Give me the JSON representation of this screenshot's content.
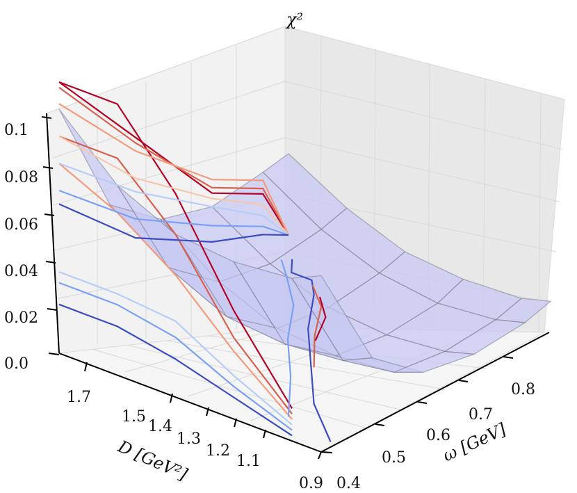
{
  "chart_data": {
    "type": "surface3d",
    "zlabel": "χ²",
    "xlabel": "ω [GeV]",
    "ylabel": "D [GeV²]",
    "x_ticks": [
      "0.4",
      "0.5",
      "0.6",
      "0.7",
      "0.8"
    ],
    "y_ticks": [
      "0.9",
      "1.1",
      "1.2",
      "1.3",
      "1.4",
      "1.5",
      "1.7"
    ],
    "z_ticks": [
      "0.0",
      "0.02",
      "0.04",
      "0.06",
      "0.08",
      "0.1"
    ],
    "xlim": [
      0.4,
      0.85
    ],
    "ylim": [
      0.9,
      1.8
    ],
    "zlim": [
      0,
      0.1
    ],
    "grid": true,
    "surface_color": "#c6c8f3",
    "surface": {
      "x": [
        0.4,
        0.5,
        0.6,
        0.7,
        0.8,
        0.85
      ],
      "y": [
        0.9,
        1.1,
        1.3,
        1.5,
        1.7,
        1.8
      ],
      "z": [
        [
          0.09,
          0.045,
          0.03,
          0.025,
          0.028,
          0.03
        ],
        [
          0.07,
          0.03,
          0.015,
          0.012,
          0.015,
          0.018
        ],
        [
          0.06,
          0.02,
          0.006,
          0.004,
          0.007,
          0.01
        ],
        [
          0.058,
          0.018,
          0.004,
          0.002,
          0.004,
          0.008
        ],
        [
          0.06,
          0.02,
          0.006,
          0.004,
          0.006,
          0.009
        ],
        [
          0.065,
          0.025,
          0.01,
          0.007,
          0.009,
          0.012
        ]
      ]
    },
    "projections_x_wall": [
      {
        "color": "#b40426",
        "points": [
          [
            1.7,
            0.012
          ],
          [
            1.5,
            0.04
          ],
          [
            1.3,
            0.075
          ],
          [
            1.1,
            0.1
          ],
          [
            0.9,
            0.1
          ]
        ]
      },
      {
        "color": "#d8604f",
        "points": [
          [
            1.7,
            0.01
          ],
          [
            1.5,
            0.03
          ],
          [
            1.3,
            0.06
          ],
          [
            1.1,
            0.08
          ],
          [
            0.9,
            0.08
          ]
        ]
      },
      {
        "color": "#f39b7c",
        "points": [
          [
            1.7,
            0.008
          ],
          [
            1.5,
            0.025
          ],
          [
            1.3,
            0.045
          ],
          [
            1.1,
            0.06
          ],
          [
            0.9,
            0.07
          ]
        ]
      },
      {
        "color": "#b5cdf9",
        "points": [
          [
            1.7,
            0.006
          ],
          [
            1.5,
            0.016
          ],
          [
            1.3,
            0.028
          ],
          [
            1.1,
            0.03
          ],
          [
            0.9,
            0.03
          ]
        ]
      },
      {
        "color": "#7aa0f5",
        "points": [
          [
            1.7,
            0.004
          ],
          [
            1.5,
            0.012
          ],
          [
            1.3,
            0.022
          ],
          [
            1.1,
            0.026
          ],
          [
            0.9,
            0.026
          ]
        ]
      },
      {
        "color": "#3b4cc0",
        "points": [
          [
            1.7,
            0.002
          ],
          [
            1.5,
            0.008
          ],
          [
            1.3,
            0.014
          ],
          [
            1.1,
            0.018
          ],
          [
            0.9,
            0.018
          ]
        ]
      }
    ],
    "projections_y_wall": [
      {
        "color": "#b40426",
        "points": [
          [
            0.4,
            0.1
          ],
          [
            0.55,
            0.065
          ],
          [
            0.7,
            0.03
          ],
          [
            0.8,
            0.02
          ],
          [
            0.85,
            0.0
          ]
        ]
      },
      {
        "color": "#d8604f",
        "points": [
          [
            0.4,
            0.098
          ],
          [
            0.55,
            0.063
          ],
          [
            0.7,
            0.032
          ],
          [
            0.8,
            0.022
          ],
          [
            0.85,
            0.0
          ]
        ]
      },
      {
        "color": "#f39b7c",
        "points": [
          [
            0.4,
            0.092
          ],
          [
            0.55,
            0.06
          ],
          [
            0.7,
            0.035
          ],
          [
            0.8,
            0.025
          ],
          [
            0.85,
            0.0
          ]
        ]
      },
      {
        "color": "#f4c7b0",
        "points": [
          [
            0.4,
            0.08
          ],
          [
            0.55,
            0.05
          ],
          [
            0.7,
            0.028
          ],
          [
            0.8,
            0.016
          ],
          [
            0.85,
            0.0
          ]
        ]
      },
      {
        "color": "#b5cdf9",
        "points": [
          [
            0.4,
            0.07
          ],
          [
            0.55,
            0.045
          ],
          [
            0.7,
            0.025
          ],
          [
            0.8,
            0.012
          ],
          [
            0.85,
            0.0
          ]
        ]
      },
      {
        "color": "#7aa0f5",
        "points": [
          [
            0.4,
            0.06
          ],
          [
            0.55,
            0.035
          ],
          [
            0.7,
            0.018
          ],
          [
            0.8,
            0.008
          ],
          [
            0.85,
            0.0
          ]
        ]
      },
      {
        "color": "#3b4cc0",
        "points": [
          [
            0.4,
            0.055
          ],
          [
            0.55,
            0.028
          ],
          [
            0.7,
            0.012
          ],
          [
            0.8,
            0.005
          ],
          [
            0.85,
            0.0
          ]
        ]
      }
    ],
    "contours_floor": [
      {
        "color": "#3b4cc0",
        "points": [
          [
            0.43,
            1.78
          ],
          [
            0.5,
            1.6
          ],
          [
            0.58,
            1.45
          ],
          [
            0.66,
            1.3
          ],
          [
            0.74,
            1.18
          ],
          [
            0.77,
            1.12
          ],
          [
            0.77,
            1.05
          ],
          [
            0.8,
            1.0
          ]
        ]
      },
      {
        "color": "#7aa0f5",
        "points": [
          [
            0.45,
            1.6
          ],
          [
            0.54,
            1.45
          ],
          [
            0.62,
            1.3
          ],
          [
            0.7,
            1.18
          ],
          [
            0.76,
            1.05
          ],
          [
            0.79,
            0.98
          ]
        ]
      },
      {
        "color": "#d8604f",
        "points": [
          [
            0.58,
            1.46
          ],
          [
            0.65,
            1.34
          ],
          [
            0.72,
            1.24
          ],
          [
            0.76,
            1.14
          ]
        ]
      },
      {
        "color": "#b40426",
        "points": [
          [
            0.64,
            1.36
          ],
          [
            0.7,
            1.29
          ],
          [
            0.74,
            1.2
          ]
        ]
      }
    ]
  }
}
